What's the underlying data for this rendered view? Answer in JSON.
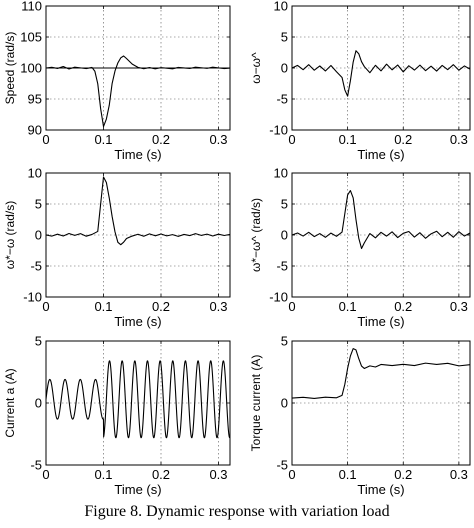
{
  "caption": "Figure 8. Dynamic response with variation load",
  "chart_data": [
    {
      "type": "line",
      "id": "speed",
      "ylabel": "Speed (rad/s)",
      "xlabel": "Time (s)",
      "xlim": [
        0,
        0.32
      ],
      "ylim": [
        90,
        110
      ],
      "xticks": [
        "0",
        "0.1",
        "0.2",
        "0.3"
      ],
      "yticks": [
        "90",
        "95",
        "100",
        "105",
        "110"
      ],
      "grid": true,
      "series": [
        {
          "ref": true,
          "x": [
            0,
            0.32
          ],
          "y": [
            100,
            100
          ]
        },
        {
          "x": [
            0,
            0.01,
            0.02,
            0.03,
            0.04,
            0.05,
            0.06,
            0.07,
            0.08,
            0.085,
            0.09,
            0.095,
            0.1,
            0.105,
            0.11,
            0.115,
            0.12,
            0.125,
            0.13,
            0.135,
            0.14,
            0.15,
            0.16,
            0.17,
            0.18,
            0.19,
            0.2,
            0.21,
            0.22,
            0.23,
            0.24,
            0.25,
            0.26,
            0.27,
            0.28,
            0.29,
            0.3,
            0.31,
            0.32
          ],
          "y": [
            100,
            100.1,
            99.9,
            100.2,
            99.8,
            100.1,
            100,
            99.9,
            100.1,
            99.5,
            97.5,
            93.5,
            90.6,
            91.8,
            94,
            97.5,
            99.5,
            100.8,
            101.6,
            101.9,
            101.5,
            100.6,
            100.1,
            99.9,
            100.1,
            99.9,
            100.1,
            100,
            99.9,
            100.1,
            100,
            99.9,
            100.1,
            100,
            99.9,
            100.1,
            100,
            99.9,
            100
          ]
        }
      ]
    },
    {
      "type": "line",
      "id": "estimation-error",
      "ylabel": "ω−ω^",
      "xlabel": "Time (s)",
      "xlim": [
        0,
        0.32
      ],
      "ylim": [
        -10,
        10
      ],
      "xticks": [
        "0",
        "0.1",
        "0.2",
        "0.3"
      ],
      "yticks": [
        "-10",
        "-5",
        "0",
        "5",
        "10"
      ],
      "grid": true,
      "series": [
        {
          "x": [
            0,
            0.01,
            0.02,
            0.03,
            0.04,
            0.05,
            0.06,
            0.07,
            0.08,
            0.09,
            0.095,
            0.1,
            0.105,
            0.11,
            0.115,
            0.12,
            0.125,
            0.13,
            0.14,
            0.15,
            0.16,
            0.17,
            0.18,
            0.19,
            0.2,
            0.21,
            0.22,
            0.23,
            0.24,
            0.25,
            0.26,
            0.27,
            0.28,
            0.29,
            0.3,
            0.31,
            0.32
          ],
          "y": [
            0,
            0.4,
            -0.3,
            0.5,
            -0.4,
            0.3,
            -0.5,
            0.4,
            -0.6,
            -1.5,
            -3.5,
            -4.5,
            -2,
            1,
            2.8,
            2.3,
            1,
            0.2,
            -0.8,
            0.4,
            -0.5,
            0.6,
            -0.3,
            0.5,
            -0.6,
            0.4,
            -0.3,
            0.5,
            -0.4,
            0.3,
            -0.5,
            0.4,
            -0.3,
            0.5,
            -0.4,
            0.3,
            -0.2
          ]
        }
      ]
    },
    {
      "type": "line",
      "id": "speed-error",
      "ylabel": "ω*−ω (rad/s)",
      "xlabel": "Time (s)",
      "xlim": [
        0,
        0.32
      ],
      "ylim": [
        -10,
        10
      ],
      "xticks": [
        "0",
        "0.1",
        "0.2",
        "0.3"
      ],
      "yticks": [
        "-10",
        "-5",
        "0",
        "5",
        "10"
      ],
      "grid": true,
      "series": [
        {
          "x": [
            0,
            0.01,
            0.02,
            0.03,
            0.04,
            0.05,
            0.06,
            0.07,
            0.08,
            0.09,
            0.095,
            0.1,
            0.105,
            0.11,
            0.115,
            0.12,
            0.125,
            0.13,
            0.135,
            0.14,
            0.15,
            0.16,
            0.17,
            0.18,
            0.19,
            0.2,
            0.21,
            0.22,
            0.23,
            0.24,
            0.25,
            0.26,
            0.27,
            0.28,
            0.29,
            0.3,
            0.31,
            0.32
          ],
          "y": [
            0,
            -0.2,
            0.1,
            -0.2,
            0.2,
            -0.1,
            0.2,
            -0.2,
            0.1,
            0.6,
            5,
            9.4,
            8.5,
            6,
            3,
            0.5,
            -1.2,
            -1.6,
            -1.2,
            -0.6,
            -0.2,
            0.1,
            -0.2,
            0.2,
            -0.1,
            0.2,
            -0.1,
            0.1,
            -0.2,
            0.1,
            -0.1,
            0.2,
            -0.1,
            0.1,
            -0.2,
            0.1,
            -0.1,
            0.1
          ]
        }
      ]
    },
    {
      "type": "line",
      "id": "estimation-error-2",
      "ylabel": "ω*−ω^ (rad/s)",
      "xlabel": "Time (s)",
      "xlim": [
        0,
        0.32
      ],
      "ylim": [
        -10,
        10
      ],
      "xticks": [
        "0",
        "0.1",
        "0.2",
        "0.3"
      ],
      "yticks": [
        "-10",
        "-5",
        "0",
        "5",
        "10"
      ],
      "grid": true,
      "series": [
        {
          "x": [
            0,
            0.01,
            0.02,
            0.03,
            0.04,
            0.05,
            0.06,
            0.07,
            0.08,
            0.09,
            0.095,
            0.1,
            0.105,
            0.11,
            0.115,
            0.12,
            0.125,
            0.13,
            0.14,
            0.15,
            0.16,
            0.17,
            0.18,
            0.19,
            0.2,
            0.21,
            0.22,
            0.23,
            0.24,
            0.25,
            0.26,
            0.27,
            0.28,
            0.29,
            0.3,
            0.31,
            0.32
          ],
          "y": [
            0,
            0.3,
            -0.2,
            0.4,
            -0.3,
            0.2,
            -0.4,
            0.3,
            -0.2,
            0.5,
            3.5,
            6.5,
            7.2,
            6,
            2.5,
            -0.5,
            -2.2,
            -1.3,
            0.2,
            -0.5,
            0.4,
            -0.2,
            0.5,
            -0.4,
            0.3,
            0.6,
            -0.3,
            0.4,
            -0.5,
            0.2,
            0.6,
            -0.3,
            0.4,
            -0.4,
            0.5,
            -0.2,
            0.3
          ]
        }
      ]
    },
    {
      "type": "line",
      "id": "current-a",
      "ylabel": "Current a (A)",
      "xlabel": "Time (s)",
      "xlim": [
        0,
        0.32
      ],
      "ylim": [
        -5,
        5
      ],
      "xticks": [
        "0",
        "0.1",
        "0.2",
        "0.3"
      ],
      "yticks": [
        "-5",
        "0",
        "5"
      ],
      "grid": true,
      "series": [
        {
          "name": "",
          "generator": "sine",
          "offset": 0.3,
          "amp_before": 1.6,
          "amp_after": 3.1,
          "step_t": 0.1,
          "period_before": 0.0265,
          "period_after": 0.022,
          "x_start": 0,
          "x_end": 0.32
        }
      ]
    },
    {
      "type": "line",
      "id": "torque-current",
      "ylabel": "Torque current (A)",
      "xlabel": "Time (s)",
      "xlim": [
        0,
        0.32
      ],
      "ylim": [
        -5,
        5
      ],
      "xticks": [
        "0",
        "0.1",
        "0.2",
        "0.3"
      ],
      "yticks": [
        "-5",
        "0",
        "5"
      ],
      "grid": true,
      "series": [
        {
          "x": [
            0,
            0.02,
            0.04,
            0.06,
            0.08,
            0.09,
            0.095,
            0.1,
            0.105,
            0.11,
            0.115,
            0.12,
            0.125,
            0.13,
            0.14,
            0.15,
            0.16,
            0.18,
            0.2,
            0.22,
            0.24,
            0.26,
            0.28,
            0.3,
            0.32
          ],
          "y": [
            0.4,
            0.45,
            0.35,
            0.45,
            0.4,
            0.6,
            1.5,
            2.8,
            3.8,
            4.4,
            4.3,
            3.6,
            3,
            2.8,
            3,
            2.9,
            3.1,
            3.0,
            3.1,
            3.0,
            3.2,
            3.1,
            3.2,
            3.0,
            3.1
          ]
        }
      ]
    }
  ]
}
